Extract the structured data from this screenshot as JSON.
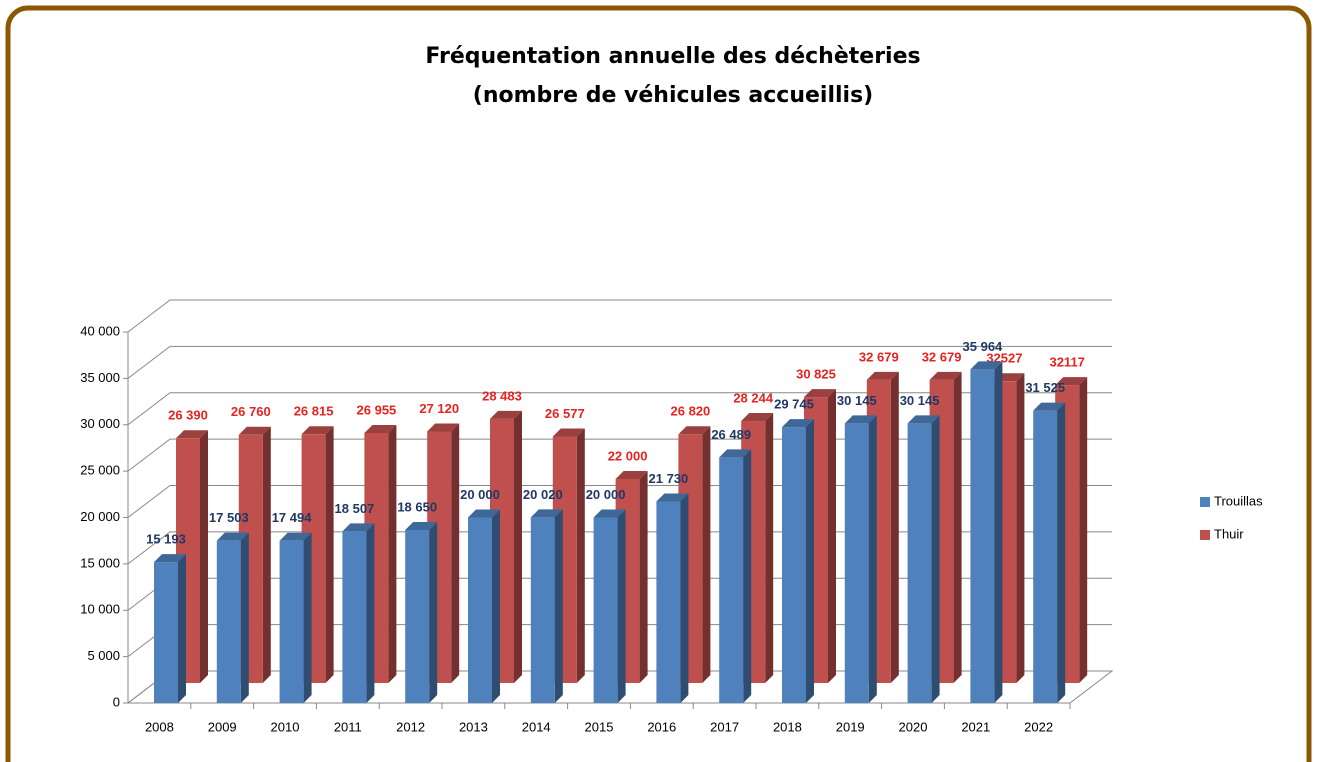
{
  "chart_data": {
    "type": "bar",
    "title": "Fréquentation annuelle des déchèteries",
    "subtitle": "(nombre de véhicules accueillis)",
    "categories": [
      "2008",
      "2009",
      "2010",
      "2011",
      "2012",
      "2013",
      "2014",
      "2015",
      "2016",
      "2017",
      "2018",
      "2019",
      "2020",
      "2021",
      "2022"
    ],
    "series": [
      {
        "name": "Trouillas",
        "color": "#4f81bd",
        "label_color": "#1f3864",
        "values": [
          15193,
          17503,
          17494,
          18507,
          18650,
          20000,
          20020,
          20000,
          21730,
          26489,
          29745,
          30145,
          30145,
          35964,
          31525
        ],
        "value_labels": [
          "15 193",
          "17 503",
          "17 494",
          "18 507",
          "18 650",
          "20 000",
          "20 020",
          "20 000",
          "21 730",
          "26 489",
          "29 745",
          "30 145",
          "30 145",
          "35 964",
          "31 525"
        ]
      },
      {
        "name": "Thuir",
        "color": "#c0504d",
        "label_color": "#e8231f",
        "values": [
          26390,
          26760,
          26815,
          26955,
          27120,
          28483,
          26577,
          22000,
          26820,
          28244,
          30825,
          32679,
          32679,
          32527,
          32117
        ],
        "value_labels": [
          "26 390",
          "26 760",
          "26 815",
          "26 955",
          "27 120",
          "28 483",
          "26 577",
          "22 000",
          "26 820",
          "28 244",
          "30 825",
          "32 679",
          "32 679",
          "32527",
          "32117"
        ]
      }
    ],
    "ylim": [
      0,
      40000
    ],
    "yticks": [
      0,
      {
        "value": 5000,
        "label": "5 000"
      },
      {
        "value": 10000,
        "label": "10 000"
      },
      {
        "value": 15000,
        "label": "15 000"
      },
      {
        "value": 20000,
        "label": "20 000"
      },
      {
        "value": 25000,
        "label": "25 000"
      },
      {
        "value": 30000,
        "label": "30 000"
      },
      {
        "value": 35000,
        "label": "35 000"
      },
      {
        "value": 40000,
        "label": "40 000"
      }
    ],
    "grid": true,
    "legend": "right"
  }
}
